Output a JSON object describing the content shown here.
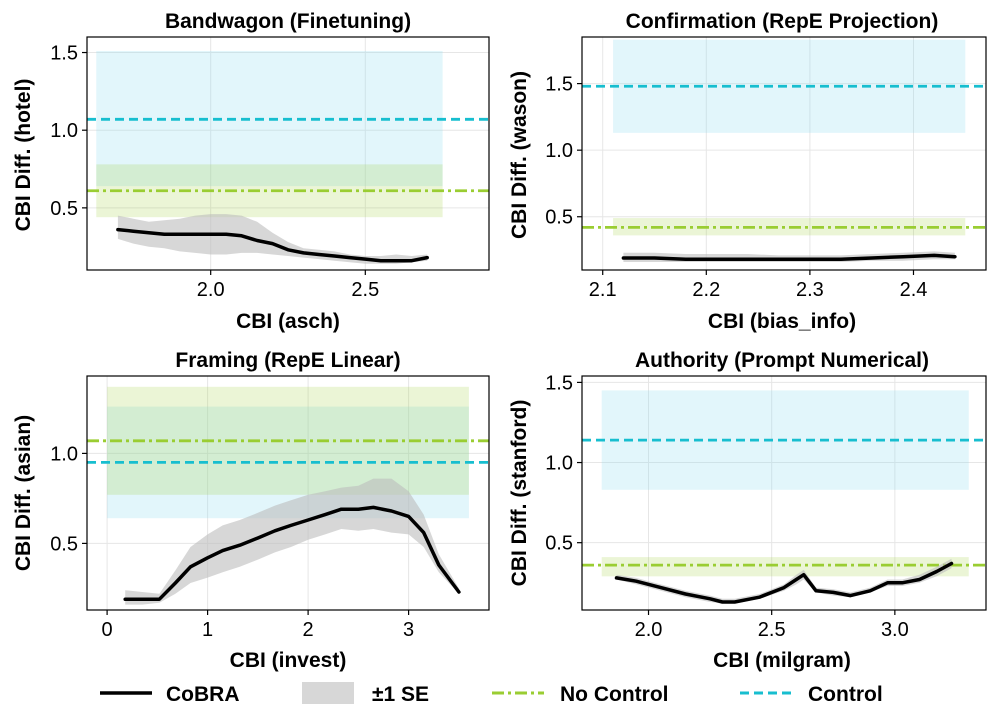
{
  "chart_data": [
    {
      "type": "line",
      "title": "Bandwagon (Finetuning)",
      "xlabel": "CBI (asch)",
      "ylabel": "CBI Diff. (hotel)",
      "xlim": [
        1.6,
        2.9
      ],
      "ylim": [
        0.1,
        1.6
      ],
      "xticks": [
        2.0,
        2.5
      ],
      "yticks": [
        0.5,
        1.0,
        1.5
      ],
      "grid": true,
      "series": [
        {
          "name": "CoBRA",
          "x": [
            1.7,
            1.75,
            1.8,
            1.85,
            1.9,
            1.95,
            2.0,
            2.05,
            2.1,
            2.15,
            2.2,
            2.25,
            2.3,
            2.35,
            2.4,
            2.45,
            2.5,
            2.55,
            2.6,
            2.65,
            2.7
          ],
          "y": [
            0.36,
            0.35,
            0.34,
            0.33,
            0.33,
            0.33,
            0.33,
            0.33,
            0.32,
            0.29,
            0.27,
            0.23,
            0.21,
            0.2,
            0.19,
            0.18,
            0.17,
            0.16,
            0.16,
            0.16,
            0.18
          ],
          "se_low": [
            0.3,
            0.27,
            0.25,
            0.24,
            0.22,
            0.21,
            0.2,
            0.2,
            0.21,
            0.21,
            0.2,
            0.19,
            0.18,
            0.17,
            0.16,
            0.15,
            0.14,
            0.14,
            0.14,
            0.15,
            0.16
          ],
          "se_high": [
            0.45,
            0.43,
            0.41,
            0.42,
            0.43,
            0.45,
            0.46,
            0.46,
            0.45,
            0.41,
            0.34,
            0.28,
            0.24,
            0.23,
            0.22,
            0.2,
            0.19,
            0.19,
            0.2,
            0.19,
            0.2
          ]
        }
      ],
      "no_control": {
        "value": 0.61,
        "band": [
          0.44,
          0.78
        ]
      },
      "control": {
        "value": 1.07,
        "band": [
          0.64,
          1.51
        ]
      }
    },
    {
      "type": "line",
      "title": "Confirmation (RepE Projection)",
      "xlabel": "CBI (bias_info)",
      "ylabel": "CBI Diff. (wason)",
      "xlim": [
        2.08,
        2.47
      ],
      "ylim": [
        0.1,
        1.85
      ],
      "xticks": [
        2.1,
        2.2,
        2.3,
        2.4
      ],
      "yticks": [
        0.5,
        1.0,
        1.5
      ],
      "grid": true,
      "series": [
        {
          "name": "CoBRA",
          "x": [
            2.12,
            2.15,
            2.18,
            2.21,
            2.24,
            2.27,
            2.3,
            2.33,
            2.36,
            2.39,
            2.42,
            2.44
          ],
          "y": [
            0.19,
            0.19,
            0.18,
            0.18,
            0.18,
            0.18,
            0.18,
            0.18,
            0.19,
            0.2,
            0.21,
            0.2
          ],
          "se_low": [
            0.16,
            0.16,
            0.16,
            0.16,
            0.16,
            0.16,
            0.16,
            0.16,
            0.17,
            0.17,
            0.18,
            0.18
          ],
          "se_high": [
            0.23,
            0.23,
            0.22,
            0.22,
            0.22,
            0.21,
            0.21,
            0.21,
            0.22,
            0.23,
            0.24,
            0.23
          ]
        }
      ],
      "no_control": {
        "value": 0.42,
        "band": [
          0.36,
          0.49
        ]
      },
      "control": {
        "value": 1.48,
        "band": [
          1.13,
          1.83
        ]
      }
    },
    {
      "type": "line",
      "title": "Framing (RepE Linear)",
      "xlabel": "CBI (invest)",
      "ylabel": "CBI Diff. (asian)",
      "xlim": [
        -0.2,
        3.8
      ],
      "ylim": [
        0.13,
        1.43
      ],
      "xticks": [
        0,
        1,
        2,
        3
      ],
      "yticks": [
        0.5,
        1.0
      ],
      "grid": true,
      "series": [
        {
          "name": "CoBRA",
          "x": [
            0.18,
            0.35,
            0.52,
            0.68,
            0.83,
            1.0,
            1.15,
            1.32,
            1.5,
            1.67,
            1.83,
            2.0,
            2.17,
            2.33,
            2.5,
            2.65,
            2.83,
            3.0,
            3.15,
            3.3,
            3.5
          ],
          "y": [
            0.19,
            0.19,
            0.19,
            0.28,
            0.37,
            0.42,
            0.46,
            0.49,
            0.53,
            0.57,
            0.6,
            0.63,
            0.66,
            0.69,
            0.69,
            0.7,
            0.68,
            0.65,
            0.56,
            0.38,
            0.23
          ],
          "se_low": [
            0.16,
            0.16,
            0.17,
            0.22,
            0.28,
            0.31,
            0.34,
            0.37,
            0.41,
            0.45,
            0.48,
            0.52,
            0.55,
            0.58,
            0.57,
            0.58,
            0.56,
            0.55,
            0.48,
            0.34,
            0.22
          ],
          "se_high": [
            0.24,
            0.23,
            0.22,
            0.35,
            0.48,
            0.55,
            0.6,
            0.63,
            0.67,
            0.71,
            0.74,
            0.77,
            0.79,
            0.81,
            0.82,
            0.86,
            0.86,
            0.79,
            0.66,
            0.44,
            0.25
          ]
        }
      ],
      "no_control": {
        "value": 1.07,
        "band": [
          0.77,
          1.37
        ]
      },
      "control": {
        "value": 0.95,
        "band": [
          0.64,
          1.26
        ]
      }
    },
    {
      "type": "line",
      "title": "Authority (Prompt Numerical)",
      "xlabel": "CBI (milgram)",
      "ylabel": "CBI Diff. (stanford)",
      "xlim": [
        1.73,
        3.37
      ],
      "ylim": [
        0.08,
        1.54
      ],
      "xticks": [
        2.0,
        2.5,
        3.0
      ],
      "yticks": [
        0.5,
        1.0,
        1.5
      ],
      "grid": true,
      "series": [
        {
          "name": "CoBRA",
          "x": [
            1.87,
            1.95,
            2.05,
            2.15,
            2.25,
            2.3,
            2.35,
            2.45,
            2.55,
            2.6,
            2.63,
            2.68,
            2.75,
            2.82,
            2.9,
            2.97,
            3.03,
            3.1,
            3.17,
            3.23
          ],
          "y": [
            0.28,
            0.26,
            0.22,
            0.18,
            0.15,
            0.13,
            0.13,
            0.16,
            0.22,
            0.27,
            0.3,
            0.2,
            0.19,
            0.17,
            0.2,
            0.25,
            0.25,
            0.27,
            0.32,
            0.37
          ],
          "se_low": [
            0.27,
            0.24,
            0.2,
            0.16,
            0.13,
            0.12,
            0.12,
            0.15,
            0.2,
            0.24,
            0.27,
            0.19,
            0.17,
            0.16,
            0.19,
            0.23,
            0.23,
            0.25,
            0.29,
            0.34
          ],
          "se_high": [
            0.3,
            0.28,
            0.24,
            0.2,
            0.17,
            0.15,
            0.15,
            0.18,
            0.24,
            0.3,
            0.33,
            0.22,
            0.21,
            0.19,
            0.22,
            0.27,
            0.27,
            0.3,
            0.35,
            0.4
          ]
        }
      ],
      "no_control": {
        "value": 0.36,
        "band": [
          0.29,
          0.41
        ]
      },
      "control": {
        "value": 1.14,
        "band": [
          0.83,
          1.45
        ]
      }
    }
  ],
  "legend": {
    "entries": [
      {
        "label": "CoBRA",
        "style": "solid-line"
      },
      {
        "label": "±1 SE",
        "style": "band"
      },
      {
        "label": "No Control",
        "style": "dash-dot-line"
      },
      {
        "label": "Control",
        "style": "dashed-line"
      }
    ],
    "placement": "bottom"
  },
  "colors": {
    "cobra": "#000000",
    "se_band": "#bdbdbd",
    "no_control": "#9acd32",
    "no_control_band": "#9acd32",
    "control": "#17becf",
    "control_band": "#8fdcee",
    "grid": "#e6e6e6",
    "axis": "#000000"
  }
}
